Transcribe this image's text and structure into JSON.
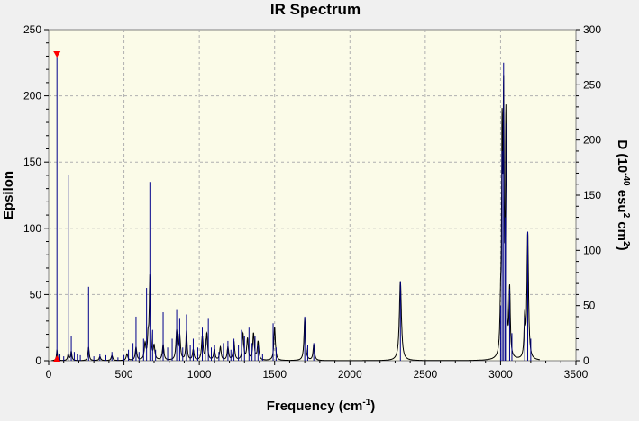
{
  "chart_data": {
    "type": "line",
    "title": "IR Spectrum",
    "xlabel": {
      "main": "Frequency (cm",
      "sup": "-1",
      "close": ")"
    },
    "ylabel": "Epsilon",
    "y2label": {
      "p1": "D (10",
      "sup1": "-40",
      "p2": " esu",
      "sup2": "2",
      "p3": " cm",
      "sup3": "2",
      "p4": ")"
    },
    "xlim": [
      0,
      3500
    ],
    "ylim": [
      0,
      250
    ],
    "y2lim": [
      0,
      300
    ],
    "xticks": [
      0,
      500,
      1000,
      1500,
      2000,
      2500,
      3000,
      3500
    ],
    "yticks": [
      0,
      50,
      100,
      150,
      200,
      250
    ],
    "y2ticks": [
      0,
      50,
      100,
      150,
      200,
      250,
      300
    ],
    "grid": true,
    "plot_background": "#fbfbe8",
    "colors": {
      "epsilon": "#000000",
      "sticks": "#00008b",
      "marker": "#ff0000"
    },
    "selected_frequency": 55,
    "series": [
      {
        "axis": "left",
        "style": "curve",
        "peaks": [
          [
            55,
            8,
            4
          ],
          [
            130,
            5,
            5
          ],
          [
            150,
            7,
            5
          ],
          [
            265,
            10,
            5
          ],
          [
            340,
            3,
            6
          ],
          [
            420,
            4,
            6
          ],
          [
            520,
            5,
            6
          ],
          [
            580,
            10,
            6
          ],
          [
            640,
            12,
            6
          ],
          [
            660,
            14,
            5
          ],
          [
            672,
            62,
            5
          ],
          [
            700,
            10,
            6
          ],
          [
            760,
            12,
            6
          ],
          [
            850,
            22,
            6
          ],
          [
            870,
            18,
            6
          ],
          [
            915,
            22,
            5
          ],
          [
            960,
            8,
            6
          ],
          [
            1020,
            18,
            6
          ],
          [
            1050,
            20,
            6
          ],
          [
            1100,
            8,
            6
          ],
          [
            1140,
            10,
            6
          ],
          [
            1190,
            10,
            6
          ],
          [
            1230,
            14,
            6
          ],
          [
            1290,
            20,
            6
          ],
          [
            1320,
            16,
            6
          ],
          [
            1360,
            20,
            6
          ],
          [
            1390,
            14,
            6
          ],
          [
            1500,
            25,
            6
          ],
          [
            1700,
            32,
            6
          ],
          [
            1760,
            12,
            6
          ],
          [
            2335,
            60,
            8
          ],
          [
            3000,
            30,
            5
          ],
          [
            3010,
            155,
            4
          ],
          [
            3020,
            180,
            4
          ],
          [
            3035,
            175,
            4
          ],
          [
            3060,
            50,
            5
          ],
          [
            3160,
            30,
            5
          ],
          [
            3180,
            95,
            6
          ]
        ]
      },
      {
        "axis": "right",
        "style": "sticks",
        "sticks": [
          [
            55,
            278
          ],
          [
            75,
            6
          ],
          [
            100,
            4
          ],
          [
            130,
            168
          ],
          [
            150,
            22
          ],
          [
            170,
            8
          ],
          [
            190,
            6
          ],
          [
            210,
            5
          ],
          [
            265,
            67
          ],
          [
            300,
            4
          ],
          [
            340,
            6
          ],
          [
            380,
            5
          ],
          [
            420,
            8
          ],
          [
            460,
            3
          ],
          [
            500,
            5
          ],
          [
            530,
            10
          ],
          [
            560,
            16
          ],
          [
            580,
            40
          ],
          [
            600,
            8
          ],
          [
            630,
            20
          ],
          [
            650,
            66
          ],
          [
            672,
            162
          ],
          [
            690,
            28
          ],
          [
            710,
            10
          ],
          [
            740,
            6
          ],
          [
            760,
            44
          ],
          [
            790,
            12
          ],
          [
            820,
            20
          ],
          [
            850,
            46
          ],
          [
            870,
            38
          ],
          [
            890,
            12
          ],
          [
            915,
            42
          ],
          [
            940,
            14
          ],
          [
            960,
            20
          ],
          [
            990,
            12
          ],
          [
            1020,
            30
          ],
          [
            1040,
            20
          ],
          [
            1060,
            38
          ],
          [
            1080,
            12
          ],
          [
            1100,
            14
          ],
          [
            1130,
            8
          ],
          [
            1160,
            16
          ],
          [
            1190,
            18
          ],
          [
            1210,
            10
          ],
          [
            1230,
            20
          ],
          [
            1260,
            14
          ],
          [
            1280,
            28
          ],
          [
            1300,
            22
          ],
          [
            1330,
            30
          ],
          [
            1350,
            16
          ],
          [
            1370,
            22
          ],
          [
            1390,
            14
          ],
          [
            1420,
            6
          ],
          [
            1490,
            34
          ],
          [
            1510,
            12
          ],
          [
            1700,
            40
          ],
          [
            1720,
            14
          ],
          [
            1760,
            16
          ],
          [
            2335,
            72
          ],
          [
            3000,
            50
          ],
          [
            3010,
            190
          ],
          [
            3020,
            270
          ],
          [
            3030,
            130
          ],
          [
            3040,
            215
          ],
          [
            3060,
            65
          ],
          [
            3075,
            25
          ],
          [
            3160,
            40
          ],
          [
            3180,
            117
          ],
          [
            3200,
            20
          ]
        ]
      }
    ]
  }
}
